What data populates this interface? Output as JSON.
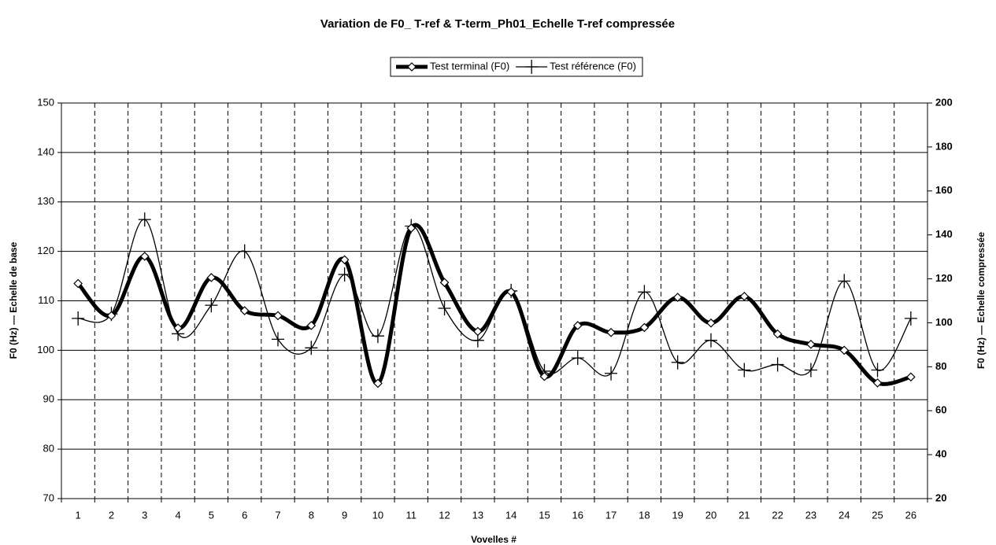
{
  "chart_data": {
    "type": "line",
    "title": "Variation de F0_ T-ref & T-term_Ph01_Echelle T-ref compressée",
    "xlabel": "Vovelles #",
    "ylabel": "F0 (Hz) — Echelle de base",
    "y2label": "F0 (Hz) — Echelle compressée",
    "categories": [
      "1",
      "2",
      "3",
      "4",
      "5",
      "6",
      "7",
      "8",
      "9",
      "10",
      "11",
      "12",
      "13",
      "14",
      "15",
      "16",
      "17",
      "18",
      "19",
      "20",
      "21",
      "22",
      "23",
      "24",
      "25",
      "26"
    ],
    "series": [
      {
        "name": "Test terminal (F0)",
        "color": "#000000",
        "marker": "diamond",
        "width": 5,
        "values": [
          113.5,
          107,
          119,
          104.5,
          114.7,
          108,
          107,
          105,
          118.3,
          93.3,
          124.7,
          113.7,
          103.8,
          111.8,
          94.7,
          105,
          103.6,
          104.6,
          110.7,
          105.5,
          110.9,
          103.3,
          101.2,
          100,
          93.4,
          94.6
        ]
      },
      {
        "name": "Test référence (F0)",
        "color": "#000000",
        "marker": "cross",
        "width": 1.3,
        "axis": "y2",
        "values": [
          102,
          104,
          147,
          95,
          108,
          132.5,
          92.5,
          88.6,
          122,
          94,
          144,
          106.6,
          92,
          114.5,
          78,
          84,
          77,
          114,
          82,
          92,
          78.5,
          81,
          78.5,
          119,
          78.5,
          102
        ]
      }
    ],
    "ylim": [
      70,
      150
    ],
    "yticks": [
      70,
      80,
      90,
      100,
      110,
      120,
      130,
      140,
      150
    ],
    "y2lim": [
      20,
      200
    ],
    "y2ticks": [
      20,
      40,
      60,
      80,
      100,
      120,
      140,
      160,
      180,
      200
    ],
    "grid": true,
    "legend": "top"
  }
}
